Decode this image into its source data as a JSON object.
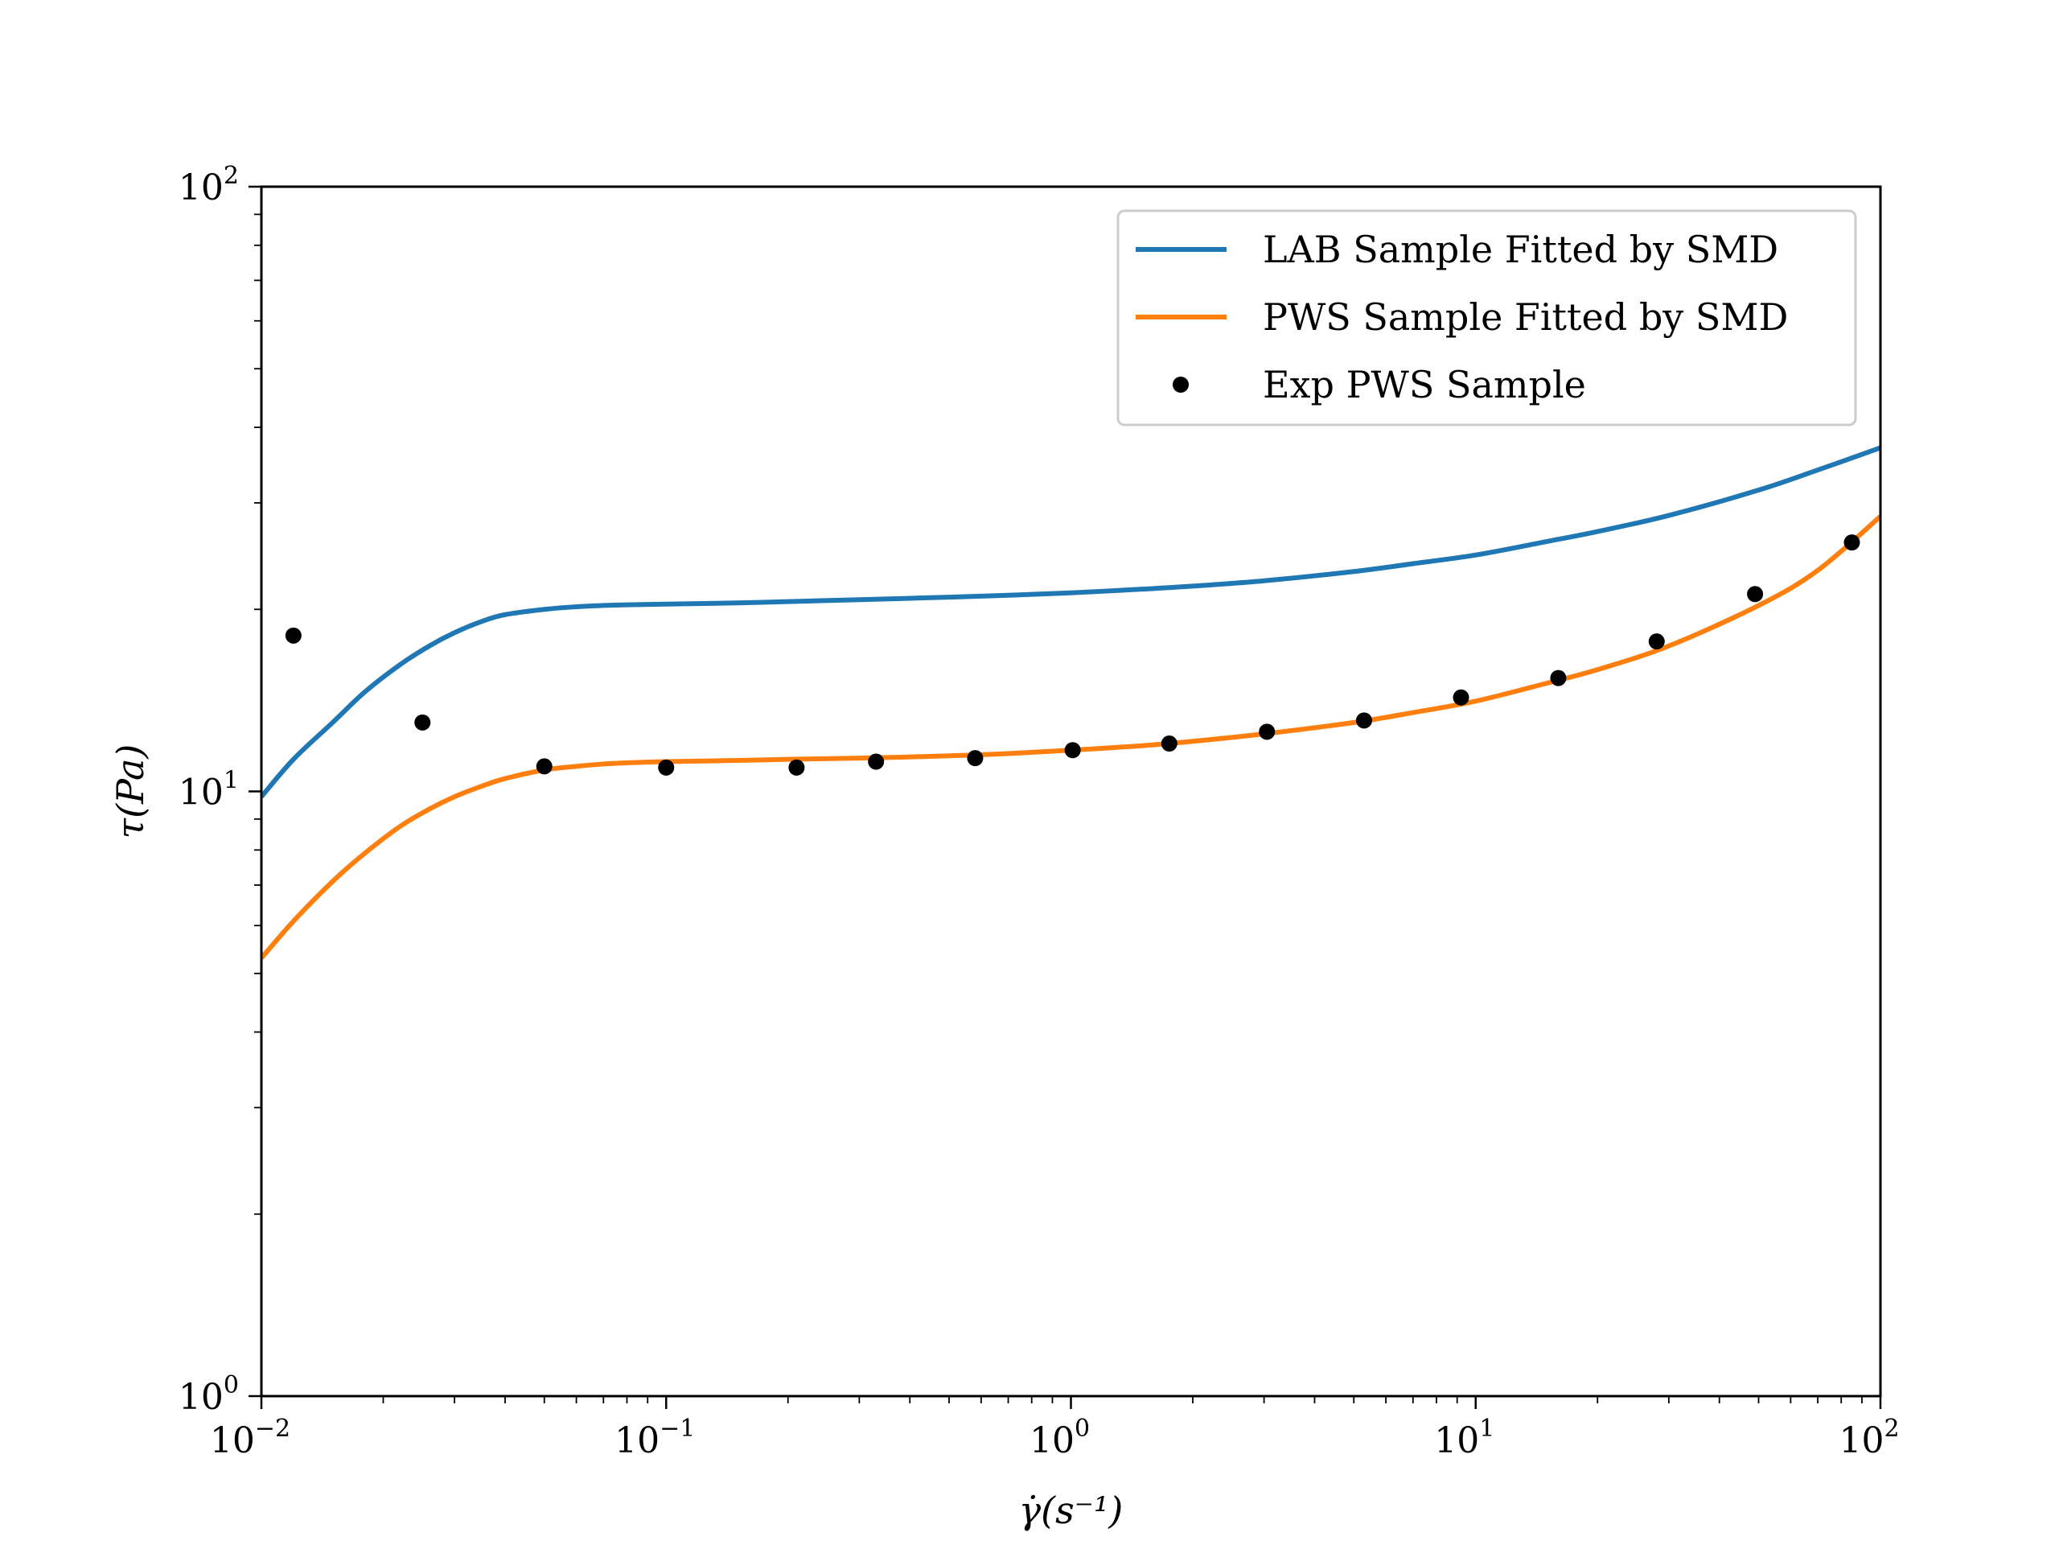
{
  "chart_data": {
    "type": "line",
    "xscale": "log",
    "yscale": "log",
    "xlim": [
      0.01,
      100
    ],
    "ylim": [
      1,
      100
    ],
    "grid": false,
    "legend_position": "top-right",
    "xlabel": "γ̇(s⁻¹)",
    "ylabel": "τ(Pa)",
    "x_ticks": [
      {
        "value": 0.01,
        "base": "10",
        "exp": "−2"
      },
      {
        "value": 0.1,
        "base": "10",
        "exp": "−1"
      },
      {
        "value": 1,
        "base": "10",
        "exp": "0"
      },
      {
        "value": 10,
        "base": "10",
        "exp": "1"
      },
      {
        "value": 100,
        "base": "10",
        "exp": "2"
      }
    ],
    "y_ticks": [
      {
        "value": 1,
        "base": "10",
        "exp": "0"
      },
      {
        "value": 10,
        "base": "10",
        "exp": "1"
      },
      {
        "value": 100,
        "base": "10",
        "exp": "2"
      }
    ],
    "series": [
      {
        "name": "LAB Sample Fitted by SMD",
        "kind": "line",
        "color": "#1f77b4",
        "x": [
          0.01,
          0.012,
          0.015,
          0.018,
          0.022,
          0.026,
          0.03,
          0.035,
          0.04,
          0.05,
          0.06,
          0.07,
          0.08,
          0.1,
          0.15,
          0.2,
          0.3,
          0.5,
          0.7,
          1,
          1.5,
          2,
          3,
          5,
          7,
          10,
          15,
          20,
          30,
          50,
          70,
          100
        ],
        "y": [
          9.8,
          11.3,
          13.0,
          14.6,
          16.2,
          17.4,
          18.3,
          19.1,
          19.6,
          20.0,
          20.2,
          20.3,
          20.35,
          20.4,
          20.5,
          20.6,
          20.75,
          20.95,
          21.1,
          21.3,
          21.6,
          21.85,
          22.3,
          23.1,
          23.8,
          24.6,
          25.9,
          26.9,
          28.6,
          31.5,
          34.0,
          37.0
        ]
      },
      {
        "name": "PWS Sample Fitted by SMD",
        "kind": "line",
        "color": "#ff7f0e",
        "x": [
          0.01,
          0.012,
          0.015,
          0.018,
          0.022,
          0.026,
          0.03,
          0.035,
          0.04,
          0.05,
          0.06,
          0.07,
          0.08,
          0.1,
          0.15,
          0.2,
          0.3,
          0.5,
          0.7,
          1,
          1.5,
          2,
          3,
          5,
          7,
          10,
          15,
          20,
          30,
          50,
          70,
          100
        ],
        "y": [
          5.3,
          6.1,
          7.1,
          7.9,
          8.75,
          9.35,
          9.8,
          10.2,
          10.5,
          10.85,
          11.0,
          11.1,
          11.15,
          11.2,
          11.25,
          11.3,
          11.35,
          11.45,
          11.55,
          11.7,
          11.9,
          12.1,
          12.45,
          13.0,
          13.5,
          14.1,
          15.1,
          15.9,
          17.4,
          20.3,
          23.2,
          28.5
        ]
      },
      {
        "name": "Exp PWS Sample",
        "kind": "scatter",
        "color": "#000000",
        "x": [
          0.012,
          0.025,
          0.05,
          0.1,
          0.21,
          0.33,
          0.58,
          1.01,
          1.75,
          3.05,
          5.3,
          9.2,
          16,
          28,
          49,
          85
        ],
        "y": [
          18.1,
          13.0,
          11.0,
          10.95,
          10.95,
          11.2,
          11.35,
          11.7,
          12.0,
          12.55,
          13.1,
          14.3,
          15.4,
          17.7,
          21.2,
          25.8
        ]
      }
    ]
  }
}
